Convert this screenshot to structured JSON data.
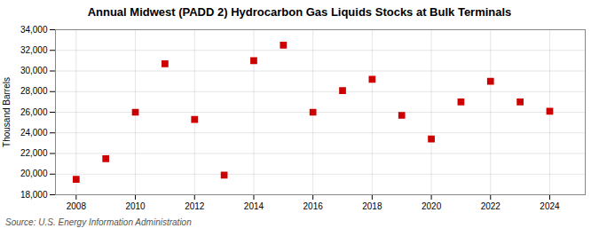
{
  "chart_data": {
    "type": "scatter",
    "title": "Annual Midwest (PADD 2) Hydrocarbon Gas Liquids Stocks at Bulk Terminals",
    "ylabel": "Thousand Barrels",
    "source": "Source: U.S. Energy Information Administration",
    "x": [
      2008,
      2009,
      2010,
      2011,
      2012,
      2013,
      2014,
      2015,
      2016,
      2017,
      2018,
      2019,
      2020,
      2021,
      2022,
      2023,
      2024
    ],
    "values": [
      19500,
      21500,
      26000,
      30700,
      25300,
      19900,
      31000,
      32500,
      26000,
      28100,
      29200,
      25700,
      23400,
      27000,
      29000,
      27000,
      26100
    ],
    "color": "#cc0000",
    "marker": "square",
    "xlim": [
      2007.3,
      2025.2
    ],
    "xticks": [
      2008,
      2010,
      2012,
      2014,
      2016,
      2018,
      2020,
      2022,
      2024
    ],
    "ylim": [
      18000,
      34000
    ],
    "yticks": [
      {
        "value": 18000,
        "label": "18,000"
      },
      {
        "value": 20000,
        "label": "20,000"
      },
      {
        "value": 22000,
        "label": "22,000"
      },
      {
        "value": 24000,
        "label": "24,000"
      },
      {
        "value": 26000,
        "label": "26,000"
      },
      {
        "value": 28000,
        "label": "28,000"
      },
      {
        "value": 30000,
        "label": "30,000"
      },
      {
        "value": 32000,
        "label": "32,000"
      },
      {
        "value": 34000,
        "label": "34,000"
      }
    ],
    "grid": true
  }
}
